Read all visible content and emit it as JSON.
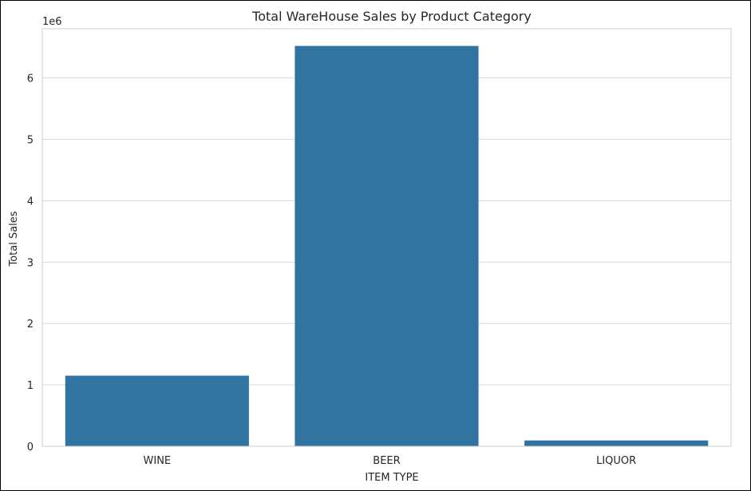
{
  "chart_data": {
    "type": "bar",
    "title": "Total WareHouse Sales by Product Category",
    "xlabel": "ITEM TYPE",
    "ylabel": "Total Sales",
    "y_offset_label": "1e6",
    "categories": [
      "WINE",
      "BEER",
      "LIQUOR"
    ],
    "values": [
      1150000,
      6520000,
      95000
    ],
    "ylim": [
      0,
      6800000
    ],
    "yticks": [
      0,
      1000000,
      2000000,
      3000000,
      4000000,
      5000000,
      6000000
    ],
    "ytick_labels": [
      "0",
      "1",
      "2",
      "3",
      "4",
      "5",
      "6"
    ],
    "grid": true,
    "bar_color": "#3274a1",
    "grid_color": "#d9d9d9",
    "axes_edge_color": "#cccccc",
    "text_color": "#262626"
  }
}
